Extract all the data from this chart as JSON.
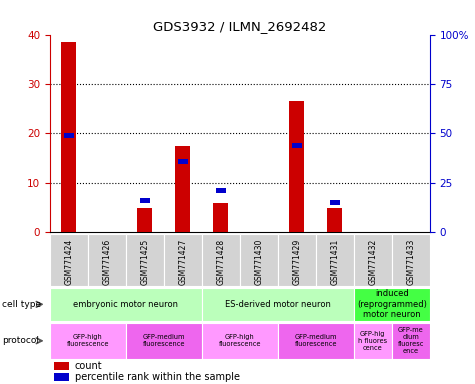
{
  "title": "GDS3932 / ILMN_2692482",
  "samples": [
    "GSM771424",
    "GSM771426",
    "GSM771425",
    "GSM771427",
    "GSM771428",
    "GSM771430",
    "GSM771429",
    "GSM771431",
    "GSM771432",
    "GSM771433"
  ],
  "counts": [
    38.5,
    0,
    5.0,
    17.5,
    6.0,
    0,
    26.5,
    5.0,
    0,
    0
  ],
  "percentile_ranks": [
    49,
    0,
    16,
    36,
    21,
    0,
    44,
    15,
    0,
    0
  ],
  "ylim_left": [
    0,
    40
  ],
  "ylim_right": [
    0,
    100
  ],
  "yticks_left": [
    0,
    10,
    20,
    30,
    40
  ],
  "yticks_right": [
    0,
    25,
    50,
    75,
    100
  ],
  "ytick_labels_right": [
    "0",
    "25",
    "50",
    "75",
    "100%"
  ],
  "cell_type_groups": [
    {
      "label": "embryonic motor neuron",
      "start": 0,
      "end": 4,
      "color": "#bbffbb"
    },
    {
      "label": "ES-derived motor neuron",
      "start": 4,
      "end": 8,
      "color": "#bbffbb"
    },
    {
      "label": "induced\n(reprogrammed)\nmotor neuron",
      "start": 8,
      "end": 10,
      "color": "#44ff44"
    }
  ],
  "protocol_groups": [
    {
      "label": "GFP-high\nfluorescence",
      "start": 0,
      "end": 2,
      "color": "#ff99ff"
    },
    {
      "label": "GFP-medium\nfluorescence",
      "start": 2,
      "end": 4,
      "color": "#ee66ee"
    },
    {
      "label": "GFP-high\nfluorescence",
      "start": 4,
      "end": 6,
      "color": "#ff99ff"
    },
    {
      "label": "GFP-medium\nfluorescence",
      "start": 6,
      "end": 8,
      "color": "#ee66ee"
    },
    {
      "label": "GFP-hig\nh fluores\ncence",
      "start": 8,
      "end": 9,
      "color": "#ff99ff"
    },
    {
      "label": "GFP-me\ndium\nfluoresc\nence",
      "start": 9,
      "end": 10,
      "color": "#ee66ee"
    }
  ],
  "bar_color_red": "#cc0000",
  "bar_color_blue": "#0000cc",
  "background_color": "#ffffff",
  "ylabel_left_color": "#cc0000",
  "ylabel_right_color": "#0000cc",
  "bar_width": 0.4,
  "blue_square_size": 2.5,
  "legend_count_label": "count",
  "legend_percentile_label": "percentile rank within the sample",
  "grid_yticks": [
    10,
    20,
    30
  ]
}
